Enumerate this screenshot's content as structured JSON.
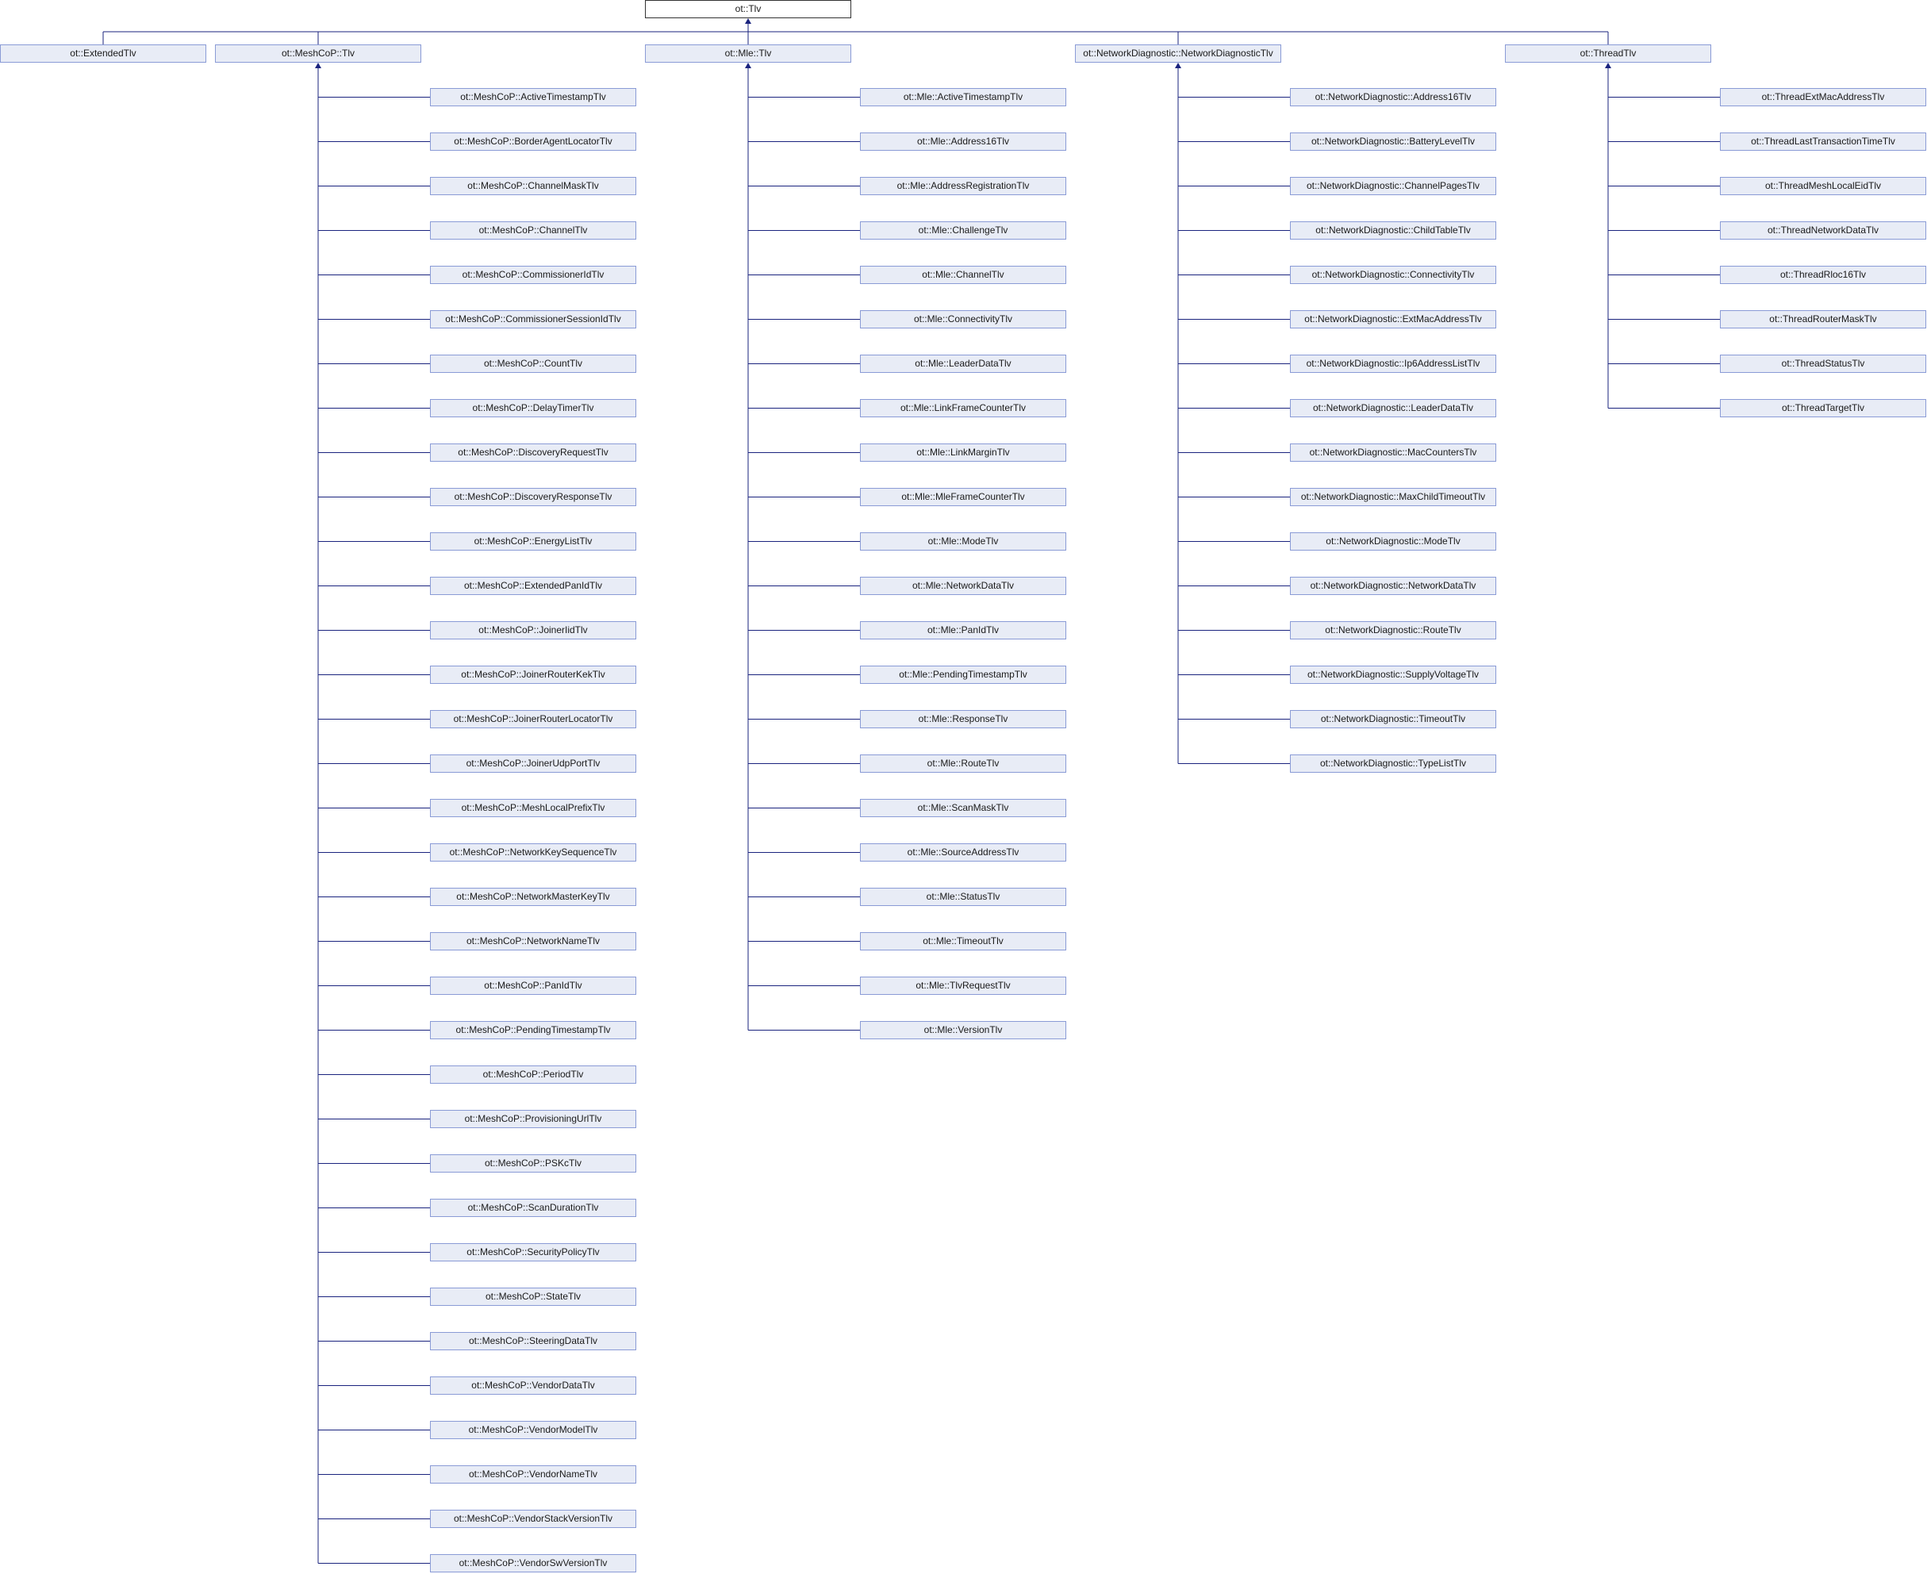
{
  "root": "ot::Tlv",
  "groups": [
    {
      "name": "ot::ExtendedTlv",
      "children": []
    },
    {
      "name": "ot::MeshCoP::Tlv",
      "children": [
        "ot::MeshCoP::ActiveTimestampTlv",
        "ot::MeshCoP::BorderAgentLocatorTlv",
        "ot::MeshCoP::ChannelMaskTlv",
        "ot::MeshCoP::ChannelTlv",
        "ot::MeshCoP::CommissionerIdTlv",
        "ot::MeshCoP::CommissionerSessionIdTlv",
        "ot::MeshCoP::CountTlv",
        "ot::MeshCoP::DelayTimerTlv",
        "ot::MeshCoP::DiscoveryRequestTlv",
        "ot::MeshCoP::DiscoveryResponseTlv",
        "ot::MeshCoP::EnergyListTlv",
        "ot::MeshCoP::ExtendedPanIdTlv",
        "ot::MeshCoP::JoinerIidTlv",
        "ot::MeshCoP::JoinerRouterKekTlv",
        "ot::MeshCoP::JoinerRouterLocatorTlv",
        "ot::MeshCoP::JoinerUdpPortTlv",
        "ot::MeshCoP::MeshLocalPrefixTlv",
        "ot::MeshCoP::NetworkKeySequenceTlv",
        "ot::MeshCoP::NetworkMasterKeyTlv",
        "ot::MeshCoP::NetworkNameTlv",
        "ot::MeshCoP::PanIdTlv",
        "ot::MeshCoP::PendingTimestampTlv",
        "ot::MeshCoP::PeriodTlv",
        "ot::MeshCoP::ProvisioningUrlTlv",
        "ot::MeshCoP::PSKcTlv",
        "ot::MeshCoP::ScanDurationTlv",
        "ot::MeshCoP::SecurityPolicyTlv",
        "ot::MeshCoP::StateTlv",
        "ot::MeshCoP::SteeringDataTlv",
        "ot::MeshCoP::VendorDataTlv",
        "ot::MeshCoP::VendorModelTlv",
        "ot::MeshCoP::VendorNameTlv",
        "ot::MeshCoP::VendorStackVersionTlv",
        "ot::MeshCoP::VendorSwVersionTlv"
      ]
    },
    {
      "name": "ot::Mle::Tlv",
      "children": [
        "ot::Mle::ActiveTimestampTlv",
        "ot::Mle::Address16Tlv",
        "ot::Mle::AddressRegistrationTlv",
        "ot::Mle::ChallengeTlv",
        "ot::Mle::ChannelTlv",
        "ot::Mle::ConnectivityTlv",
        "ot::Mle::LeaderDataTlv",
        "ot::Mle::LinkFrameCounterTlv",
        "ot::Mle::LinkMarginTlv",
        "ot::Mle::MleFrameCounterTlv",
        "ot::Mle::ModeTlv",
        "ot::Mle::NetworkDataTlv",
        "ot::Mle::PanIdTlv",
        "ot::Mle::PendingTimestampTlv",
        "ot::Mle::ResponseTlv",
        "ot::Mle::RouteTlv",
        "ot::Mle::ScanMaskTlv",
        "ot::Mle::SourceAddressTlv",
        "ot::Mle::StatusTlv",
        "ot::Mle::TimeoutTlv",
        "ot::Mle::TlvRequestTlv",
        "ot::Mle::VersionTlv"
      ]
    },
    {
      "name": "ot::NetworkDiagnostic::NetworkDiagnosticTlv",
      "children": [
        "ot::NetworkDiagnostic::Address16Tlv",
        "ot::NetworkDiagnostic::BatteryLevelTlv",
        "ot::NetworkDiagnostic::ChannelPagesTlv",
        "ot::NetworkDiagnostic::ChildTableTlv",
        "ot::NetworkDiagnostic::ConnectivityTlv",
        "ot::NetworkDiagnostic::ExtMacAddressTlv",
        "ot::NetworkDiagnostic::Ip6AddressListTlv",
        "ot::NetworkDiagnostic::LeaderDataTlv",
        "ot::NetworkDiagnostic::MacCountersTlv",
        "ot::NetworkDiagnostic::MaxChildTimeoutTlv",
        "ot::NetworkDiagnostic::ModeTlv",
        "ot::NetworkDiagnostic::NetworkDataTlv",
        "ot::NetworkDiagnostic::RouteTlv",
        "ot::NetworkDiagnostic::SupplyVoltageTlv",
        "ot::NetworkDiagnostic::TimeoutTlv",
        "ot::NetworkDiagnostic::TypeListTlv"
      ]
    },
    {
      "name": "ot::ThreadTlv",
      "children": [
        "ot::ThreadExtMacAddressTlv",
        "ot::ThreadLastTransactionTimeTlv",
        "ot::ThreadMeshLocalEidTlv",
        "ot::ThreadNetworkDataTlv",
        "ot::ThreadRloc16Tlv",
        "ot::ThreadRouterMaskTlv",
        "ot::ThreadStatusTlv",
        "ot::ThreadTargetTlv"
      ]
    }
  ],
  "colors": {
    "edge": "#1a237e",
    "node_border": "#8a9bd6",
    "node_fill": "#e8ecf6"
  }
}
